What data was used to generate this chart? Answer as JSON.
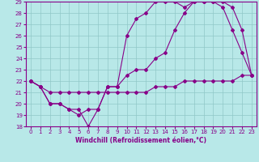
{
  "title": "",
  "xlabel": "Windchill (Refroidissement éolien,°C)",
  "ylabel": "",
  "xlim": [
    -0.5,
    23.5
  ],
  "ylim": [
    18,
    29
  ],
  "yticks": [
    18,
    19,
    20,
    21,
    22,
    23,
    24,
    25,
    26,
    27,
    28,
    29
  ],
  "xticks": [
    0,
    1,
    2,
    3,
    4,
    5,
    6,
    7,
    8,
    9,
    10,
    11,
    12,
    13,
    14,
    15,
    16,
    17,
    18,
    19,
    20,
    21,
    22,
    23
  ],
  "background_color": "#b8e8e8",
  "grid_color": "#90c8c8",
  "line_color": "#880088",
  "line1_x": [
    0,
    1,
    2,
    3,
    4,
    5,
    6,
    7,
    8,
    9,
    10,
    11,
    12,
    13,
    14,
    15,
    16,
    17,
    18,
    19,
    20,
    21,
    22,
    23
  ],
  "line1_y": [
    22,
    21.5,
    20,
    20,
    19.5,
    19.5,
    18,
    19.5,
    21.5,
    21.5,
    26.0,
    27.5,
    28.0,
    29.0,
    29.0,
    29.0,
    28.5,
    29.0,
    29.0,
    29.0,
    29.0,
    28.5,
    26.5,
    22.5
  ],
  "line2_x": [
    0,
    1,
    2,
    3,
    4,
    5,
    6,
    7,
    8,
    9,
    10,
    11,
    12,
    13,
    14,
    15,
    16,
    17,
    18,
    19,
    20,
    21,
    22,
    23
  ],
  "line2_y": [
    22,
    21.5,
    20,
    20,
    19.5,
    19.0,
    19.5,
    19.5,
    21.5,
    21.5,
    22.5,
    23.0,
    23.0,
    24.0,
    24.5,
    26.5,
    28.0,
    29.0,
    29.0,
    29.0,
    28.5,
    26.5,
    24.5,
    22.5
  ],
  "line3_x": [
    0,
    1,
    2,
    3,
    4,
    5,
    6,
    7,
    8,
    9,
    10,
    11,
    12,
    13,
    14,
    15,
    16,
    17,
    18,
    19,
    20,
    21,
    22,
    23
  ],
  "line3_y": [
    22,
    21.5,
    21.0,
    21.0,
    21.0,
    21.0,
    21.0,
    21.0,
    21.0,
    21.0,
    21.0,
    21.0,
    21.0,
    21.5,
    21.5,
    21.5,
    22.0,
    22.0,
    22.0,
    22.0,
    22.0,
    22.0,
    22.5,
    22.5
  ]
}
